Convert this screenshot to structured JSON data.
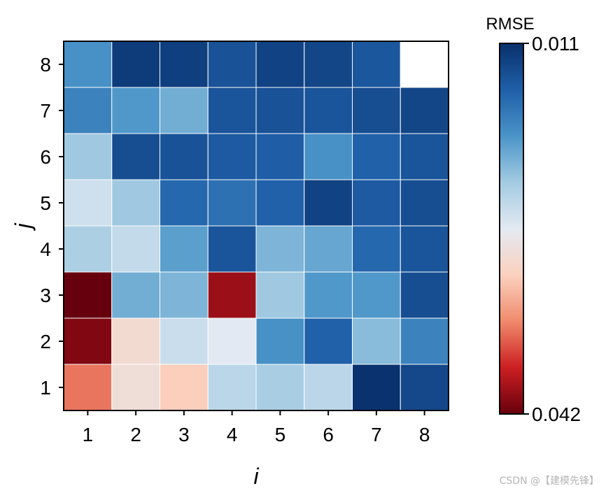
{
  "chart_data": {
    "type": "heatmap",
    "xlabel": "i",
    "ylabel": "j",
    "x_ticks": [
      "1",
      "2",
      "3",
      "4",
      "5",
      "6",
      "7",
      "8"
    ],
    "y_ticks": [
      "1",
      "2",
      "3",
      "4",
      "5",
      "6",
      "7",
      "8"
    ],
    "colorbar": {
      "title": "RMSE",
      "top_label": "0.011",
      "bottom_label": "0.042",
      "vmin": 0.011,
      "vmax": 0.042,
      "cmap": "RdBu",
      "colors_low_to_high": [
        "#08306b",
        "#1f5fa8",
        "#4a94c8",
        "#a3cbe2",
        "#e3e9f2",
        "#fbd1bf",
        "#f08a6c",
        "#cc1f22",
        "#67000d"
      ]
    },
    "rows_j_top_to_bottom": [
      {
        "j": 8,
        "values": [
          0.0185,
          0.012,
          0.0122,
          0.0138,
          0.0125,
          0.0128,
          0.0142,
          null
        ]
      },
      {
        "j": 7,
        "values": [
          0.0175,
          0.019,
          0.0205,
          0.014,
          0.0138,
          0.014,
          0.0135,
          0.0128
        ]
      },
      {
        "j": 6,
        "values": [
          0.0225,
          0.0135,
          0.0138,
          0.0145,
          0.0148,
          0.0185,
          0.015,
          0.014
        ]
      },
      {
        "j": 5,
        "values": [
          0.0252,
          0.0225,
          0.0155,
          0.0162,
          0.015,
          0.0125,
          0.0145,
          0.0135
        ]
      },
      {
        "j": 4,
        "values": [
          0.0232,
          0.0245,
          0.0195,
          0.014,
          0.021,
          0.02,
          0.0155,
          0.014
        ]
      },
      {
        "j": 3,
        "values": [
          0.042,
          0.0205,
          0.021,
          0.04,
          0.0225,
          0.019,
          0.019,
          0.0135
        ]
      },
      {
        "j": 2,
        "values": [
          0.041,
          0.029,
          0.025,
          0.0265,
          0.0185,
          0.015,
          0.0215,
          0.0175
        ]
      },
      {
        "j": 1,
        "values": [
          0.035,
          0.0285,
          0.0305,
          0.024,
          0.023,
          0.024,
          0.0112,
          0.013
        ]
      }
    ]
  },
  "watermark": "CSDN @【建模先锋】"
}
